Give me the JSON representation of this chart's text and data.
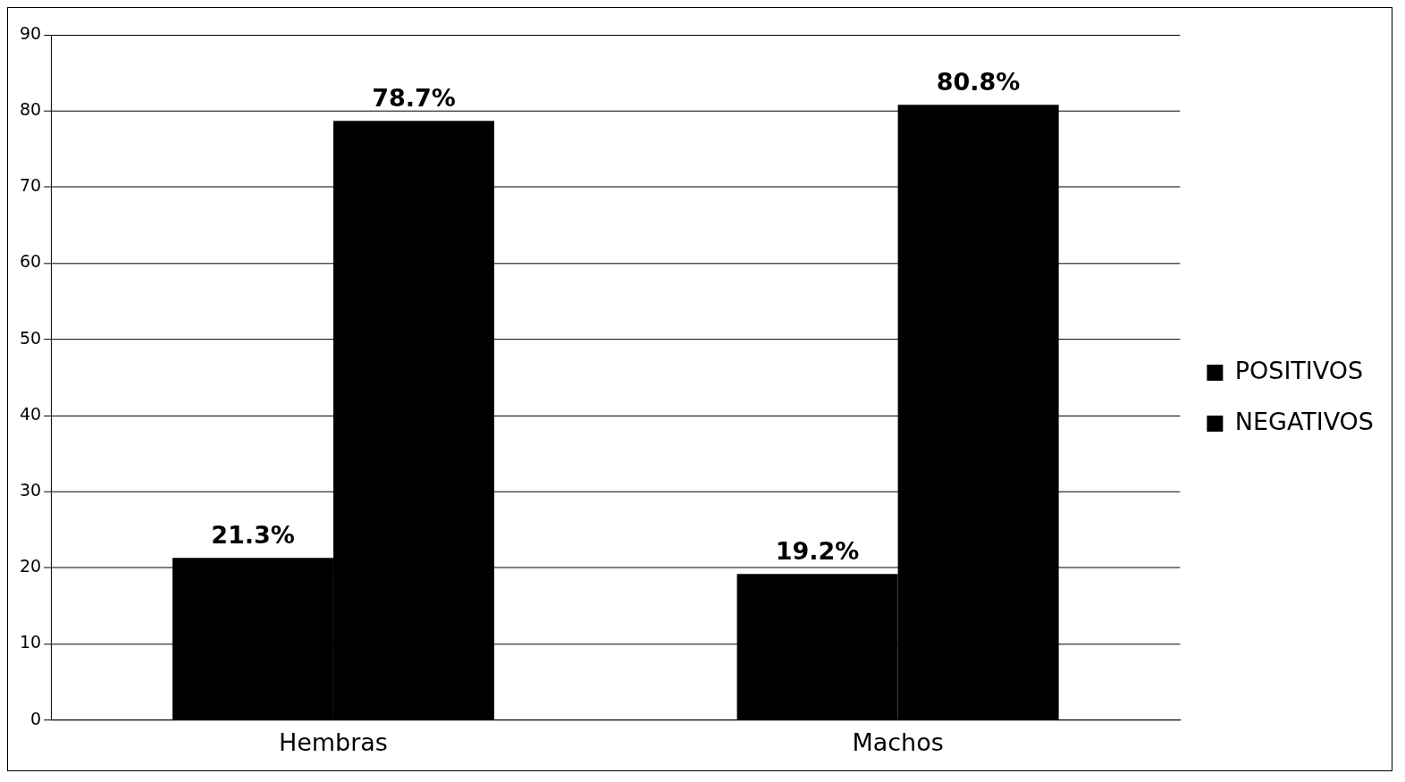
{
  "chart_data": {
    "type": "bar",
    "categories": [
      "Hembras",
      "Machos"
    ],
    "series": [
      {
        "name": "POSITIVOS",
        "color": "#000000",
        "values": [
          21.3,
          19.2
        ],
        "value_labels": [
          "21.3%",
          "19.2%"
        ]
      },
      {
        "name": "NEGATIVOS",
        "color": "#000000",
        "values": [
          78.7,
          80.8
        ],
        "value_labels": [
          "78.7%",
          "80.8%"
        ]
      }
    ],
    "ylim": [
      0,
      90
    ],
    "yticks": [
      0,
      10,
      20,
      30,
      40,
      50,
      60,
      70,
      80,
      90
    ],
    "grid": "y",
    "legend": "right"
  }
}
